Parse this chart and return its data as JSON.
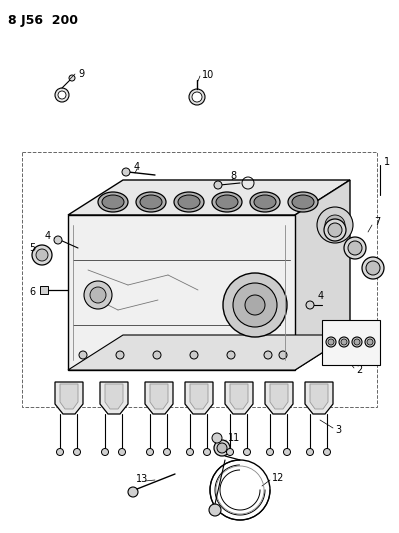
{
  "title": "8 J56  200",
  "bg_color": "#ffffff",
  "fig_width": 3.99,
  "fig_height": 5.33,
  "dpi": 100,
  "line_color": "#000000",
  "gray_light": "#d0d0d0",
  "gray_mid": "#aaaaaa",
  "gray_dark": "#666666"
}
